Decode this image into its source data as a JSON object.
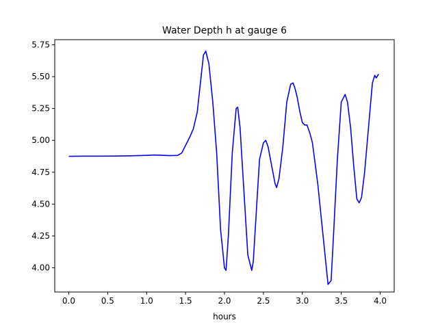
{
  "chart_data": {
    "type": "line",
    "title": "Water Depth h at gauge 6",
    "xlabel": "hours",
    "ylabel": "",
    "xlim": [
      -0.18,
      4.18
    ],
    "ylim": [
      3.81,
      5.79
    ],
    "grid": false,
    "legend": "none",
    "xticks": [
      0.0,
      0.5,
      1.0,
      1.5,
      2.0,
      2.5,
      3.0,
      3.5,
      4.0
    ],
    "xtick_labels": [
      "0.0",
      "0.5",
      "1.0",
      "1.5",
      "2.0",
      "2.5",
      "3.0",
      "3.5",
      "4.0"
    ],
    "yticks": [
      4.0,
      4.25,
      4.5,
      4.75,
      5.0,
      5.25,
      5.5,
      5.75
    ],
    "ytick_labels": [
      "4.00",
      "4.25",
      "4.50",
      "4.75",
      "5.00",
      "5.25",
      "5.50",
      "5.75"
    ],
    "series": [
      {
        "color": "#0000ff",
        "x": [
          0.0,
          0.2,
          0.4,
          0.6,
          0.8,
          1.0,
          1.1,
          1.2,
          1.3,
          1.4,
          1.45,
          1.5,
          1.55,
          1.6,
          1.65,
          1.7,
          1.73,
          1.76,
          1.8,
          1.85,
          1.9,
          1.95,
          2.0,
          2.02,
          2.05,
          2.1,
          2.15,
          2.17,
          2.2,
          2.25,
          2.3,
          2.35,
          2.37,
          2.4,
          2.45,
          2.5,
          2.53,
          2.56,
          2.6,
          2.65,
          2.67,
          2.7,
          2.75,
          2.8,
          2.85,
          2.88,
          2.9,
          2.93,
          2.97,
          3.0,
          3.03,
          3.06,
          3.1,
          3.13,
          3.2,
          3.25,
          3.3,
          3.33,
          3.37,
          3.4,
          3.45,
          3.5,
          3.55,
          3.58,
          3.62,
          3.66,
          3.7,
          3.73,
          3.76,
          3.8,
          3.85,
          3.9,
          3.93,
          3.95,
          3.98
        ],
        "y": [
          4.875,
          4.876,
          4.876,
          4.877,
          4.879,
          4.882,
          4.885,
          4.883,
          4.88,
          4.882,
          4.9,
          4.96,
          5.02,
          5.09,
          5.22,
          5.5,
          5.67,
          5.7,
          5.6,
          5.3,
          4.9,
          4.3,
          4.0,
          3.98,
          4.25,
          4.9,
          5.25,
          5.26,
          5.1,
          4.6,
          4.1,
          3.98,
          4.05,
          4.35,
          4.85,
          4.98,
          5.0,
          4.95,
          4.82,
          4.66,
          4.63,
          4.7,
          4.95,
          5.3,
          5.44,
          5.45,
          5.42,
          5.35,
          5.22,
          5.14,
          5.12,
          5.12,
          5.05,
          4.98,
          4.65,
          4.35,
          4.05,
          3.87,
          3.9,
          4.25,
          4.85,
          5.3,
          5.36,
          5.3,
          5.1,
          4.8,
          4.54,
          4.51,
          4.55,
          4.75,
          5.1,
          5.45,
          5.51,
          5.49,
          5.52
        ]
      }
    ]
  }
}
